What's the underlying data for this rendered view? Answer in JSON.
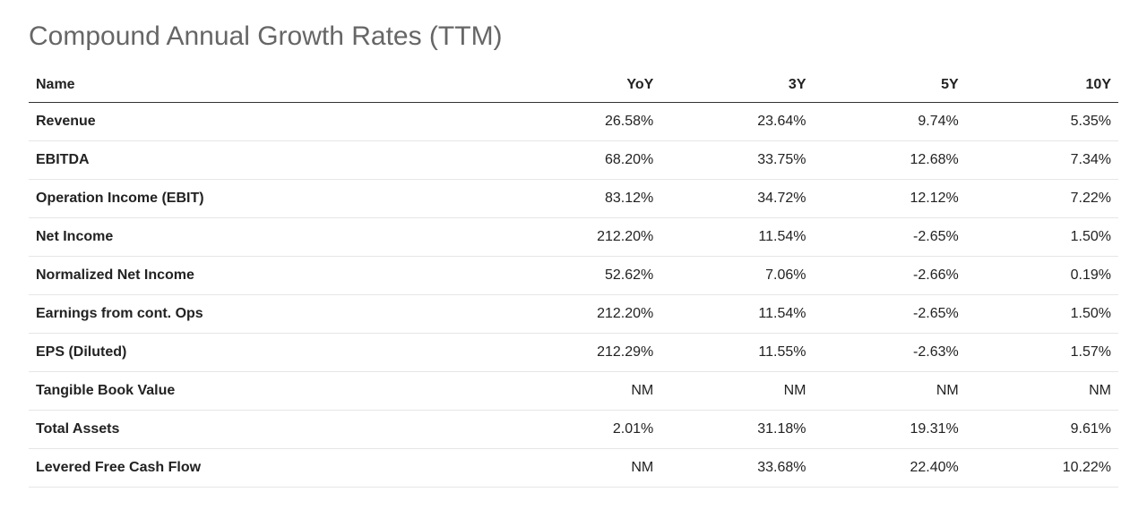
{
  "title": "Compound Annual Growth Rates (TTM)",
  "table": {
    "type": "table",
    "background_color": "#ffffff",
    "header_border_color": "#333333",
    "row_border_color": "#e6e6e6",
    "text_color": "#222222",
    "title_color": "#666666",
    "title_fontsize": 30,
    "header_fontsize": 16,
    "cell_fontsize": 16,
    "columns": [
      {
        "key": "name",
        "label": "Name",
        "align": "left",
        "width_pct": 44
      },
      {
        "key": "yoy",
        "label": "YoY",
        "align": "right",
        "width_pct": 14
      },
      {
        "key": "y3",
        "label": "3Y",
        "align": "right",
        "width_pct": 14
      },
      {
        "key": "y5",
        "label": "5Y",
        "align": "right",
        "width_pct": 14
      },
      {
        "key": "y10",
        "label": "10Y",
        "align": "right",
        "width_pct": 14
      }
    ],
    "rows": [
      {
        "name": "Revenue",
        "yoy": "26.58%",
        "y3": "23.64%",
        "y5": "9.74%",
        "y10": "5.35%"
      },
      {
        "name": "EBITDA",
        "yoy": "68.20%",
        "y3": "33.75%",
        "y5": "12.68%",
        "y10": "7.34%"
      },
      {
        "name": "Operation Income (EBIT)",
        "yoy": "83.12%",
        "y3": "34.72%",
        "y5": "12.12%",
        "y10": "7.22%"
      },
      {
        "name": "Net Income",
        "yoy": "212.20%",
        "y3": "11.54%",
        "y5": "-2.65%",
        "y10": "1.50%"
      },
      {
        "name": "Normalized Net Income",
        "yoy": "52.62%",
        "y3": "7.06%",
        "y5": "-2.66%",
        "y10": "0.19%"
      },
      {
        "name": "Earnings from cont. Ops",
        "yoy": "212.20%",
        "y3": "11.54%",
        "y5": "-2.65%",
        "y10": "1.50%"
      },
      {
        "name": "EPS (Diluted)",
        "yoy": "212.29%",
        "y3": "11.55%",
        "y5": "-2.63%",
        "y10": "1.57%"
      },
      {
        "name": "Tangible Book Value",
        "yoy": "NM",
        "y3": "NM",
        "y5": "NM",
        "y10": "NM"
      },
      {
        "name": "Total Assets",
        "yoy": "2.01%",
        "y3": "31.18%",
        "y5": "19.31%",
        "y10": "9.61%"
      },
      {
        "name": "Levered Free Cash Flow",
        "yoy": "NM",
        "y3": "33.68%",
        "y5": "22.40%",
        "y10": "10.22%"
      }
    ]
  }
}
